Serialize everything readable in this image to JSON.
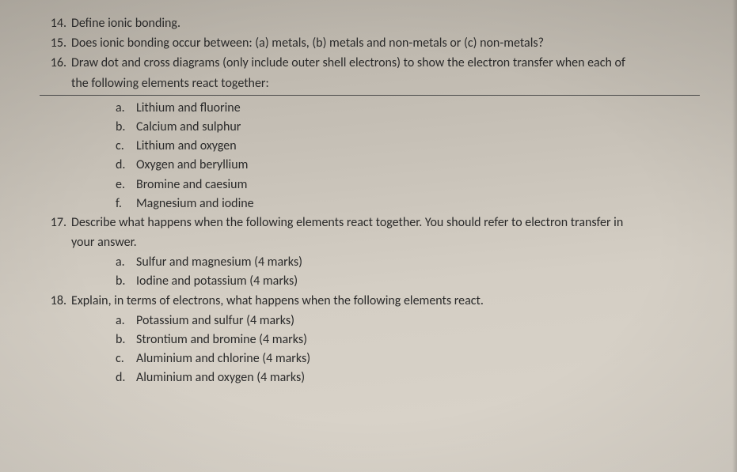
{
  "questions": {
    "q14": {
      "num": "14.",
      "text": "Define ionic bonding."
    },
    "q15": {
      "num": "15.",
      "text": "Does ionic bonding occur between: (a) metals, (b) metals and non-metals or (c) non-metals?"
    },
    "q16": {
      "num": "16.",
      "text": "Draw dot and cross diagrams (only include outer shell electrons) to show the electron transfer when each of",
      "cont": "the following elements react together:"
    },
    "q17": {
      "num": "17.",
      "text": "Describe what happens when the following elements react together. You should refer to electron transfer in",
      "cont": "your answer."
    },
    "q18": {
      "num": "18.",
      "text": "Explain, in terms of electrons, what happens when the following elements react."
    }
  },
  "q16_items": {
    "a": {
      "l": "a.",
      "t": "Lithium and fluorine"
    },
    "b": {
      "l": "b.",
      "t": "Calcium and sulphur"
    },
    "c": {
      "l": "c.",
      "t": "Lithium and oxygen"
    },
    "d": {
      "l": "d.",
      "t": "Oxygen and beryllium"
    },
    "e": {
      "l": "e.",
      "t": "Bromine and caesium"
    },
    "f": {
      "l": "f.",
      "t": "Magnesium and iodine"
    }
  },
  "q17_items": {
    "a": {
      "l": "a.",
      "t": "Sulfur and magnesium (4 marks)"
    },
    "b": {
      "l": "b.",
      "t": "Iodine and potassium (4 marks)"
    }
  },
  "q18_items": {
    "a": {
      "l": "a.",
      "t": "Potassium and sulfur (4 marks)"
    },
    "b": {
      "l": "b.",
      "t": "Strontium and bromine (4 marks)"
    },
    "c": {
      "l": "c.",
      "t": "Aluminium and chlorine (4 marks)"
    },
    "d": {
      "l": "d.",
      "t": "Aluminium and oxygen (4 marks)"
    }
  }
}
